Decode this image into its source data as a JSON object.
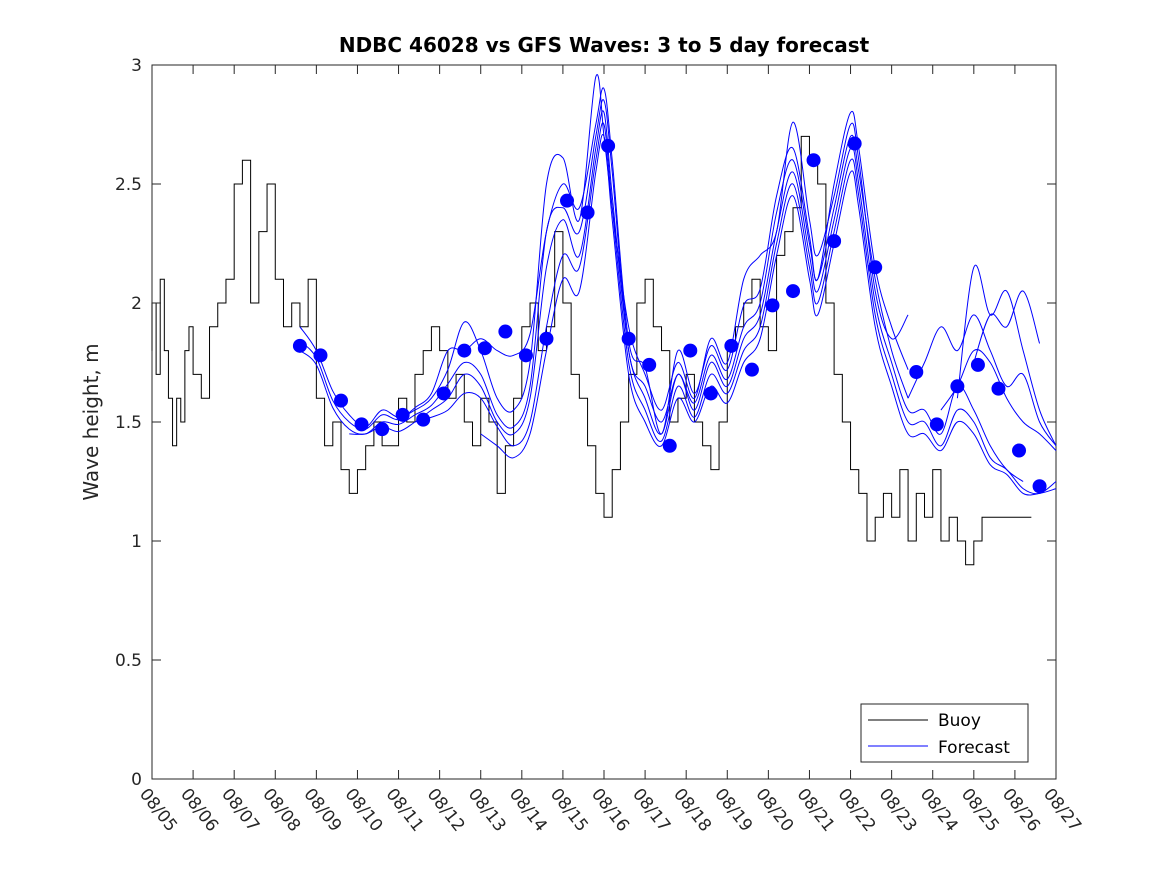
{
  "chart_data": {
    "type": "line",
    "title": "NDBC 46028 vs GFS Waves: 3 to 5 day forecast",
    "xlabel": "",
    "ylabel": "Wave height, m",
    "xlim": [
      0,
      22
    ],
    "ylim": [
      0,
      3
    ],
    "x_unit": "days since 08/05 00:00",
    "x_tick_values": [
      0,
      1,
      2,
      3,
      4,
      5,
      6,
      7,
      8,
      9,
      10,
      11,
      12,
      13,
      14,
      15,
      16,
      17,
      18,
      19,
      20,
      21,
      22
    ],
    "x_tick_labels": [
      "08/05",
      "08/06",
      "08/07",
      "08/08",
      "08/09",
      "08/10",
      "08/11",
      "08/12",
      "08/13",
      "08/14",
      "08/15",
      "08/16",
      "08/17",
      "08/18",
      "08/19",
      "08/20",
      "08/21",
      "08/22",
      "08/23",
      "08/24",
      "08/25",
      "08/26",
      "08/27"
    ],
    "y_tick_values": [
      0,
      0.5,
      1,
      1.5,
      2,
      2.5,
      3
    ],
    "y_tick_labels": [
      "0",
      "0.5",
      "1",
      "1.5",
      "2",
      "2.5",
      "3"
    ],
    "grid": false,
    "legend_position": "bottom-right",
    "colors": {
      "buoy": "#000000",
      "forecast": "#0000ff",
      "axes": "#262626"
    },
    "series": [
      {
        "name": "Buoy",
        "style": "stair-line",
        "color": "#000000",
        "x": [
          0.0,
          0.1,
          0.2,
          0.3,
          0.4,
          0.5,
          0.6,
          0.7,
          0.8,
          0.9,
          1.0,
          1.2,
          1.4,
          1.6,
          1.8,
          2.0,
          2.2,
          2.4,
          2.6,
          2.8,
          3.0,
          3.2,
          3.4,
          3.6,
          3.8,
          4.0,
          4.2,
          4.4,
          4.6,
          4.8,
          5.0,
          5.2,
          5.4,
          5.6,
          5.8,
          6.0,
          6.2,
          6.4,
          6.6,
          6.8,
          7.0,
          7.2,
          7.4,
          7.6,
          7.8,
          8.0,
          8.2,
          8.4,
          8.6,
          8.8,
          9.0,
          9.2,
          9.4,
          9.6,
          9.8,
          10.0,
          10.2,
          10.4,
          10.6,
          10.8,
          11.0,
          11.2,
          11.4,
          11.6,
          11.8,
          12.0,
          12.2,
          12.4,
          12.6,
          12.8,
          13.0,
          13.2,
          13.4,
          13.6,
          13.8,
          14.0,
          14.2,
          14.4,
          14.6,
          14.8,
          15.0,
          15.2,
          15.4,
          15.6,
          15.8,
          16.0,
          16.2,
          16.4,
          16.6,
          16.8,
          17.0,
          17.2,
          17.4,
          17.6,
          17.8,
          18.0,
          18.2,
          18.4,
          18.6,
          18.8,
          19.0,
          19.2,
          19.4,
          19.6,
          19.8,
          20.0,
          20.2,
          20.4,
          20.6,
          20.8,
          21.0,
          21.2
        ],
        "values": [
          1.8,
          2.0,
          1.7,
          2.1,
          1.8,
          1.6,
          1.4,
          1.6,
          1.5,
          1.8,
          1.9,
          1.7,
          1.6,
          1.9,
          2.0,
          2.1,
          2.5,
          2.6,
          2.0,
          2.3,
          2.5,
          2.1,
          1.9,
          2.0,
          1.9,
          2.1,
          1.6,
          1.4,
          1.5,
          1.3,
          1.2,
          1.3,
          1.4,
          1.5,
          1.4,
          1.4,
          1.6,
          1.5,
          1.7,
          1.8,
          1.9,
          1.8,
          1.6,
          1.7,
          1.5,
          1.4,
          1.6,
          1.5,
          1.2,
          1.4,
          1.6,
          1.9,
          2.0,
          1.8,
          1.9,
          2.3,
          2.0,
          1.7,
          1.6,
          1.4,
          1.2,
          1.1,
          1.3,
          1.5,
          1.7,
          2.0,
          2.1,
          1.9,
          1.8,
          1.5,
          1.6,
          1.7,
          1.5,
          1.4,
          1.3,
          1.5,
          1.8,
          1.9,
          2.0,
          2.1,
          1.9,
          1.8,
          2.2,
          2.3,
          2.4,
          2.7,
          2.6,
          2.5,
          2.0,
          1.7,
          1.5,
          1.3,
          1.2,
          1.0,
          1.1,
          1.2,
          1.1,
          1.3,
          1.0,
          1.2,
          1.1,
          1.3,
          1.0,
          1.1,
          1.0,
          0.9,
          1.0,
          1.1,
          1.1,
          1.1,
          1.1,
          1.1
        ]
      },
      {
        "name": "Forecast",
        "style": "line",
        "color": "#0000ff",
        "runs": [
          {
            "x": [
              3.6,
              4.0,
              4.4,
              4.8,
              5.2,
              5.6,
              6.0,
              6.4,
              6.8,
              7.2,
              7.6,
              8.0,
              8.4,
              8.8,
              9.2,
              9.6,
              10.0,
              10.4,
              10.8,
              11.0,
              11.2,
              11.6,
              12.0,
              12.4,
              12.8,
              13.2,
              13.6,
              14.0,
              14.4,
              14.8,
              15.2,
              15.6,
              16.0,
              16.2,
              16.6,
              17.0,
              17.2,
              17.6,
              18.0,
              18.4
            ],
            "values": [
              1.84,
              1.77,
              1.59,
              1.5,
              1.47,
              1.53,
              1.51,
              1.56,
              1.62,
              1.8,
              1.8,
              1.85,
              1.8,
              1.78,
              1.87,
              2.3,
              2.5,
              2.4,
              2.75,
              2.9,
              2.6,
              1.84,
              1.73,
              1.45,
              1.8,
              1.62,
              1.82,
              1.72,
              1.99,
              2.06,
              2.45,
              2.65,
              2.28,
              2.1,
              2.5,
              2.8,
              2.65,
              2.15,
              1.9,
              1.72
            ]
          },
          {
            "x": [
              3.6,
              4.0,
              4.4,
              4.8,
              5.2,
              5.6,
              6.0,
              6.4,
              6.8,
              7.2,
              7.6,
              8.0,
              8.4,
              8.8,
              9.2,
              9.6,
              10.0,
              10.4,
              10.8,
              11.0,
              11.2,
              11.6,
              12.0,
              12.4,
              12.8,
              13.2,
              13.6,
              14.0,
              14.4,
              14.8,
              15.2,
              15.6,
              16.0,
              16.2,
              16.6,
              17.0,
              17.2,
              17.6,
              18.0,
              18.4
            ],
            "values": [
              1.9,
              1.8,
              1.63,
              1.53,
              1.48,
              1.55,
              1.52,
              1.55,
              1.6,
              1.72,
              1.92,
              1.8,
              1.6,
              1.55,
              1.75,
              2.5,
              2.61,
              2.35,
              2.95,
              2.7,
              2.4,
              1.9,
              1.7,
              1.55,
              1.75,
              1.6,
              1.85,
              1.75,
              2.1,
              2.2,
              2.3,
              2.76,
              2.35,
              2.2,
              2.45,
              2.75,
              2.6,
              2.05,
              1.85,
              1.95
            ]
          },
          {
            "x": [
              3.6,
              4.0,
              4.4,
              4.8,
              5.2,
              5.6,
              6.0,
              6.4,
              6.8,
              7.2,
              7.6,
              8.0,
              8.4,
              8.8,
              9.2,
              9.6,
              10.0,
              10.4,
              10.8,
              11.0,
              11.2,
              11.6,
              12.0,
              12.4,
              12.8,
              13.2,
              13.6,
              14.0,
              14.4,
              14.8,
              15.2,
              15.6,
              16.0,
              16.2,
              16.6,
              17.0,
              17.2,
              17.6,
              18.0,
              18.4
            ],
            "values": [
              1.8,
              1.74,
              1.56,
              1.47,
              1.45,
              1.5,
              1.49,
              1.53,
              1.57,
              1.66,
              1.75,
              1.7,
              1.53,
              1.48,
              1.65,
              2.3,
              2.4,
              2.3,
              2.7,
              2.85,
              2.55,
              1.8,
              1.65,
              1.5,
              1.7,
              1.58,
              1.78,
              1.68,
              1.9,
              2.0,
              2.38,
              2.6,
              2.25,
              2.1,
              2.4,
              2.7,
              2.55,
              2.1,
              1.8,
              1.6
            ]
          },
          {
            "x": [
              4.8,
              5.2,
              5.6,
              6.0,
              6.4,
              6.8,
              7.2,
              7.6,
              8.0,
              8.4,
              8.8,
              9.2,
              9.6,
              10.0,
              10.4,
              10.8,
              11.0,
              11.2,
              11.6,
              12.0,
              12.4,
              12.8,
              13.2,
              13.6,
              14.0,
              14.4,
              14.8,
              15.2,
              15.6,
              16.0,
              16.2,
              16.6,
              17.0,
              17.2,
              17.6,
              18.0,
              18.4,
              18.8,
              19.2,
              19.6,
              20.0,
              20.4,
              20.8,
              21.2
            ],
            "values": [
              1.45,
              1.45,
              1.48,
              1.46,
              1.5,
              1.55,
              1.6,
              1.7,
              1.65,
              1.5,
              1.45,
              1.6,
              2.15,
              2.35,
              2.2,
              2.65,
              2.8,
              2.45,
              1.8,
              1.6,
              1.45,
              1.7,
              1.55,
              1.75,
              1.65,
              1.85,
              1.95,
              2.3,
              2.55,
              2.2,
              2.05,
              2.35,
              2.65,
              2.5,
              2.0,
              1.75,
              1.55,
              1.55,
              1.45,
              1.65,
              1.55,
              1.4,
              1.3,
              1.25
            ]
          },
          {
            "x": [
              6.4,
              6.8,
              7.2,
              7.6,
              8.0,
              8.4,
              8.8,
              9.2,
              9.6,
              10.0,
              10.4,
              10.8,
              11.0,
              11.2,
              11.6,
              12.0,
              12.4,
              12.8,
              13.2,
              13.6,
              14.0,
              14.4,
              14.8,
              15.2,
              15.6,
              16.0,
              16.2,
              16.6,
              17.0,
              17.2,
              17.6,
              18.0,
              18.4,
              18.8,
              19.2,
              19.6,
              20.0,
              20.4,
              20.8,
              21.2,
              21.6,
              22.0
            ],
            "values": [
              1.5,
              1.52,
              1.55,
              1.62,
              1.6,
              1.48,
              1.4,
              1.5,
              1.9,
              2.2,
              2.15,
              2.6,
              2.75,
              2.4,
              1.75,
              1.55,
              1.42,
              1.65,
              1.52,
              1.7,
              1.62,
              1.8,
              1.9,
              2.25,
              2.5,
              2.15,
              2.0,
              2.3,
              2.6,
              2.45,
              1.95,
              1.7,
              1.5,
              1.5,
              1.4,
              1.55,
              1.5,
              1.35,
              1.3,
              1.22,
              1.2,
              1.25
            ]
          },
          {
            "x": [
              8.0,
              8.4,
              8.8,
              9.2,
              9.6,
              10.0,
              10.4,
              10.8,
              11.0,
              11.2,
              11.6,
              12.0,
              12.4,
              12.8,
              13.2,
              13.6,
              14.0,
              14.4,
              14.8,
              15.2,
              15.6,
              16.0,
              16.2,
              16.6,
              17.0,
              17.2,
              17.6,
              18.0,
              18.4,
              18.8,
              19.2,
              19.6,
              20.0,
              20.4,
              20.8,
              21.2,
              21.6,
              22.0
            ],
            "values": [
              1.45,
              1.4,
              1.35,
              1.45,
              1.8,
              2.1,
              2.05,
              2.55,
              2.7,
              2.35,
              1.7,
              1.5,
              1.4,
              1.6,
              1.5,
              1.65,
              1.58,
              1.75,
              1.85,
              2.2,
              2.45,
              2.1,
              1.95,
              2.25,
              2.55,
              2.4,
              1.9,
              1.65,
              1.45,
              1.45,
              1.38,
              1.5,
              1.45,
              1.32,
              1.28,
              1.2,
              1.2,
              1.22
            ]
          },
          {
            "x": [
              18.4,
              18.8,
              19.2,
              19.6,
              20.0,
              20.4,
              20.8,
              21.2,
              21.6,
              22.0
            ],
            "values": [
              1.6,
              1.75,
              1.9,
              1.8,
              1.95,
              1.8,
              1.65,
              1.7,
              1.5,
              1.4
            ]
          },
          {
            "x": [
              19.2,
              19.6,
              20.0,
              20.4,
              20.8,
              21.2,
              21.6,
              22.0
            ],
            "values": [
              1.55,
              1.65,
              1.8,
              1.75,
              1.6,
              1.5,
              1.45,
              1.38
            ]
          },
          {
            "x": [
              19.6,
              20.0,
              20.4,
              20.8,
              21.2,
              21.6,
              22.0
            ],
            "values": [
              1.6,
              2.15,
              1.95,
              2.05,
              1.8,
              1.55,
              1.4
            ]
          },
          {
            "x": [
              20.0,
              20.4,
              20.8,
              21.2,
              21.6
            ],
            "values": [
              1.75,
              1.95,
              1.9,
              2.05,
              1.83
            ]
          }
        ]
      },
      {
        "name": "Forecast points",
        "style": "markers",
        "color": "#0000ff",
        "x": [
          3.6,
          4.1,
          4.6,
          5.1,
          5.6,
          6.1,
          6.6,
          7.1,
          7.6,
          8.1,
          8.6,
          9.1,
          9.6,
          10.1,
          10.6,
          11.1,
          11.6,
          12.1,
          12.6,
          13.1,
          13.6,
          14.1,
          14.6,
          15.1,
          15.6,
          16.1,
          16.6,
          17.1,
          17.6,
          18.6,
          19.1,
          19.6,
          20.1,
          20.6,
          21.1,
          21.6
        ],
        "values": [
          1.82,
          1.78,
          1.59,
          1.49,
          1.47,
          1.53,
          1.51,
          1.62,
          1.8,
          1.81,
          1.88,
          1.78,
          1.85,
          2.43,
          2.38,
          2.66,
          1.85,
          1.74,
          1.4,
          1.8,
          1.62,
          1.82,
          1.72,
          1.99,
          2.05,
          2.6,
          2.26,
          2.67,
          2.15,
          1.71,
          1.49,
          1.65,
          1.74,
          1.64,
          1.38,
          1.23
        ]
      }
    ]
  }
}
